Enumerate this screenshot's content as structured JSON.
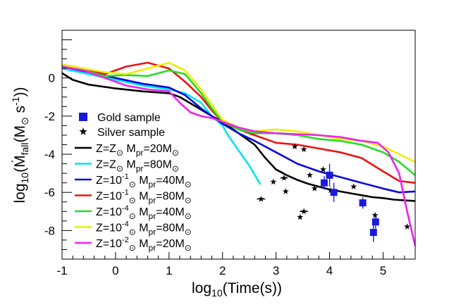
{
  "chart_data": {
    "type": "line",
    "xlabel": {
      "prefix": "log",
      "sub": "10",
      "rest": "(Time(s))"
    },
    "ylabel": {
      "prefix": "log",
      "sub": "10",
      "open": "(",
      "mdot": "Ṁ",
      "msub": "fall",
      "paren": "(M",
      "sun": "⊙",
      "unit": " s",
      "sup": "-1",
      "close": "))"
    },
    "xlim": [
      -1,
      5.6
    ],
    "ylim": [
      -9.5,
      2.5
    ],
    "xticks": [
      -1,
      0,
      1,
      2,
      3,
      4,
      5
    ],
    "yticks": [
      0,
      -2,
      -4,
      -6,
      -8
    ],
    "xtick_labels": [
      "-1",
      "0",
      "1",
      "2",
      "3",
      "4",
      "5"
    ],
    "ytick_labels": [
      "0",
      "-2",
      "-4",
      "-6",
      "-8"
    ],
    "grid": false,
    "legend_position": "left",
    "colors": {
      "axis": "#000000",
      "gold": "#1a1adb",
      "silver": "#000000"
    },
    "sun_symbol": "⊙",
    "gold_sample": {
      "label": "Gold sample",
      "points": [
        {
          "x": 3.9,
          "y": -5.5,
          "ye": 0.35
        },
        {
          "x": 4.0,
          "y": -5.1,
          "ye": 0.6
        },
        {
          "x": 4.08,
          "y": -6.0,
          "ye": 0.5
        },
        {
          "x": 4.62,
          "y": -6.55,
          "ye": 0.3
        },
        {
          "x": 4.82,
          "y": -8.1,
          "ye": 0.5
        },
        {
          "x": 4.86,
          "y": -7.55,
          "ye": 0.35
        }
      ]
    },
    "silver_sample": {
      "label": "Silver sample",
      "points": [
        {
          "x": 2.72,
          "y": -6.35,
          "xe": 0.08
        },
        {
          "x": 2.95,
          "y": -5.45
        },
        {
          "x": 3.15,
          "y": -5.25,
          "xe": 0.07
        },
        {
          "x": 3.18,
          "y": -5.95
        },
        {
          "x": 3.35,
          "y": -3.6
        },
        {
          "x": 3.45,
          "y": -7.3
        },
        {
          "x": 3.52,
          "y": -3.75
        },
        {
          "x": 3.52,
          "y": -7.0,
          "xe": 0.08
        },
        {
          "x": 3.63,
          "y": -5.1
        },
        {
          "x": 3.72,
          "y": -5.8
        },
        {
          "x": 3.88,
          "y": -4.8
        },
        {
          "x": 4.02,
          "y": -5.9
        },
        {
          "x": 4.45,
          "y": -5.7
        },
        {
          "x": 4.85,
          "y": -7.2
        },
        {
          "x": 5.45,
          "y": -7.8
        }
      ]
    },
    "series": [
      {
        "name": "Z=Z⊙ Mpr=20M⊙",
        "label": {
          "z": "Z=Z",
          "zexp": "",
          "mass": "20M"
        },
        "color": "#000000",
        "x": [
          -1,
          -0.8,
          -0.5,
          0,
          0.5,
          1,
          1.2,
          1.5,
          1.8,
          2,
          2.2,
          2.4,
          2.6,
          2.8,
          3,
          3.2,
          3.4,
          3.6,
          3.8,
          4,
          4.2,
          4.4,
          4.6,
          4.8,
          5,
          5.2,
          5.4,
          5.6
        ],
        "y": [
          0.25,
          -0.1,
          -0.35,
          -0.55,
          -0.7,
          -0.8,
          -1.0,
          -1.5,
          -2.0,
          -2.3,
          -2.7,
          -3.1,
          -3.5,
          -4.2,
          -4.8,
          -5.1,
          -5.35,
          -5.55,
          -5.7,
          -5.85,
          -5.95,
          -6.05,
          -6.15,
          -6.25,
          -6.3,
          -6.38,
          -6.42,
          -6.45
        ]
      },
      {
        "name": "Z=Z⊙ Mpr=80M⊙",
        "label": {
          "z": "Z=Z",
          "zexp": "",
          "mass": "80M"
        },
        "color": "#00e5ee",
        "x": [
          -1,
          -0.5,
          0,
          0.5,
          1,
          1.3,
          1.6,
          1.8,
          2,
          2.1,
          2.3,
          2.5,
          2.7
        ],
        "y": [
          0.5,
          0.2,
          -0.1,
          -0.4,
          -0.6,
          -0.8,
          -1.3,
          -2.0,
          -2.5,
          -3.0,
          -3.8,
          -4.6,
          -5.55
        ]
      },
      {
        "name": "Z=10^-1 Z⊙ Mpr=40M⊙",
        "label": {
          "z": "Z=10",
          "zexp": "-1",
          "mass": "40M"
        },
        "color": "#0a0ad8",
        "x": [
          -1,
          -0.5,
          0,
          0.5,
          1,
          1.3,
          1.6,
          1.8,
          2,
          2.3,
          2.6,
          3,
          3.4,
          3.8,
          4.2,
          4.6,
          5,
          5.3,
          5.6
        ],
        "y": [
          0.6,
          0.3,
          0.0,
          -0.3,
          -0.5,
          -0.9,
          -1.6,
          -2.0,
          -2.4,
          -2.9,
          -3.3,
          -3.9,
          -4.5,
          -4.9,
          -5.2,
          -5.5,
          -5.8,
          -6.0,
          -5.95
        ]
      },
      {
        "name": "Z=10^-1 Z⊙ Mpr=80M⊙",
        "label": {
          "z": "Z=10",
          "zexp": "-1",
          "mass": "80M"
        },
        "color": "#ee1111",
        "x": [
          -1,
          -0.6,
          -0.2,
          0.2,
          0.6,
          1,
          1.3,
          1.6,
          1.8,
          2,
          2.3,
          2.6,
          3,
          3.4,
          3.8,
          4.2,
          4.6,
          5,
          5.3,
          5.6
        ],
        "y": [
          0.7,
          0.5,
          0.2,
          0.6,
          0.8,
          0.5,
          -0.2,
          -1.0,
          -1.7,
          -2.3,
          -2.7,
          -3.0,
          -3.4,
          -3.5,
          -3.7,
          -3.9,
          -4.2,
          -4.9,
          -5.4,
          -5.5
        ]
      },
      {
        "name": "Z=10^-4 Z⊙ Mpr=40M⊙",
        "label": {
          "z": "Z=10",
          "zexp": "-4",
          "mass": "40M"
        },
        "color": "#22dd22",
        "x": [
          -1,
          -0.6,
          -0.2,
          0.2,
          0.6,
          1,
          1.3,
          1.6,
          1.8,
          2,
          2.3,
          2.6,
          3,
          3.4,
          3.8,
          4.2,
          4.6,
          5,
          5.3,
          5.6
        ],
        "y": [
          0.6,
          0.4,
          0.1,
          0.15,
          0.1,
          0.4,
          0.2,
          -0.8,
          -1.6,
          -2.3,
          -2.7,
          -2.9,
          -2.9,
          -3.0,
          -3.2,
          -3.3,
          -3.5,
          -3.9,
          -4.4,
          -5.1
        ]
      },
      {
        "name": "Z=10^-4 Z⊙ Mpr=80M⊙",
        "label": {
          "z": "Z=10",
          "zexp": "-4",
          "mass": "80M"
        },
        "color": "#eeee00",
        "x": [
          -1,
          -0.6,
          -0.2,
          0.2,
          0.6,
          1,
          1.3,
          1.6,
          1.8,
          2,
          2.3,
          2.6,
          3,
          3.4,
          3.8,
          4.2,
          4.6,
          5,
          5.3,
          5.6
        ],
        "y": [
          0.7,
          0.5,
          0.3,
          0.2,
          0.5,
          0.8,
          0.4,
          -0.6,
          -1.4,
          -2.2,
          -2.6,
          -2.8,
          -2.7,
          -2.8,
          -3.0,
          -3.2,
          -3.3,
          -3.6,
          -4.0,
          -4.4
        ]
      },
      {
        "name": "Z=10^-2 Z⊙ Mpr=20M⊙",
        "label": {
          "z": "Z=10",
          "zexp": "-2",
          "mass": "20M"
        },
        "color": "#ee22ee",
        "x": [
          -1,
          -0.6,
          -0.2,
          0.2,
          0.6,
          1,
          1.2,
          1.4,
          1.6,
          1.8,
          2,
          2.3,
          2.6,
          3,
          3.4,
          3.8,
          4.2,
          4.6,
          4.9,
          5.1,
          5.3,
          5.45,
          5.6
        ],
        "y": [
          0.6,
          0.4,
          0.0,
          -0.4,
          -0.6,
          -0.7,
          -1.3,
          -1.8,
          -2.0,
          -2.1,
          -2.3,
          -2.6,
          -2.8,
          -2.9,
          -2.95,
          -3.0,
          -3.1,
          -3.3,
          -3.4,
          -3.9,
          -5.0,
          -7.0,
          -8.8
        ]
      }
    ]
  }
}
